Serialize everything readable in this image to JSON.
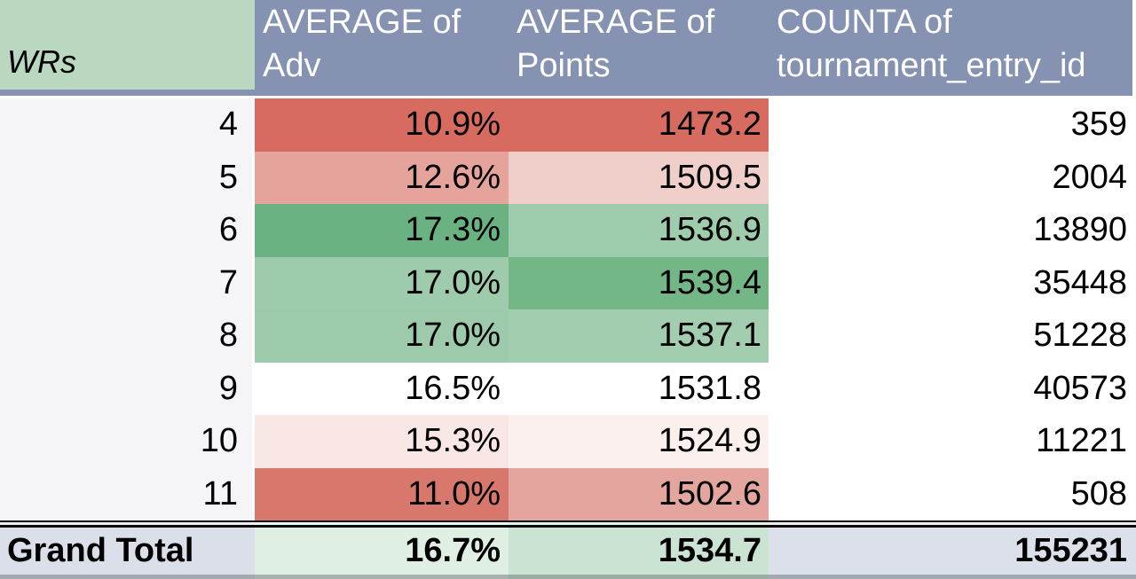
{
  "header": {
    "corner_label": "WRs",
    "columns": [
      {
        "label": "AVERAGE of Adv"
      },
      {
        "label": "AVERAGE of Points"
      },
      {
        "label": "COUNTA of tournament_entry_id"
      }
    ]
  },
  "rows": [
    {
      "wr": "4",
      "adv": "10.9%",
      "points": "1473.2",
      "count": "359",
      "adv_bg": "#D76B60",
      "points_bg": "#D76B60"
    },
    {
      "wr": "5",
      "adv": "12.6%",
      "points": "1509.5",
      "count": "2004",
      "adv_bg": "#E5A39C",
      "points_bg": "#F0CFCA"
    },
    {
      "wr": "6",
      "adv": "17.3%",
      "points": "1536.9",
      "count": "13890",
      "adv_bg": "#6AB282",
      "points_bg": "#9ECCAC"
    },
    {
      "wr": "7",
      "adv": "17.0%",
      "points": "1539.4",
      "count": "35448",
      "adv_bg": "#9DCBAB",
      "points_bg": "#73B787"
    },
    {
      "wr": "8",
      "adv": "17.0%",
      "points": "1537.1",
      "count": "51228",
      "adv_bg": "#9CCAAA",
      "points_bg": "#A2CEAF"
    },
    {
      "wr": "9",
      "adv": "16.5%",
      "points": "1531.8",
      "count": "40573",
      "adv_bg": "#FFFFFF",
      "points_bg": "#FFFFFF"
    },
    {
      "wr": "10",
      "adv": "15.3%",
      "points": "1524.9",
      "count": "11221",
      "adv_bg": "#F8E7E5",
      "points_bg": "#FBF0EE"
    },
    {
      "wr": "11",
      "adv": "11.0%",
      "points": "1502.6",
      "count": "508",
      "adv_bg": "#D8786D",
      "points_bg": "#E3A59E"
    }
  ],
  "grand_total": {
    "label": "Grand Total",
    "adv": "16.7%",
    "points": "1534.7",
    "count": "155231"
  },
  "colors": {
    "header_bg": "#8592B2",
    "header_text": "#FFFFFF",
    "corner_bg": "#B9D8BF",
    "corner_text": "#000000",
    "row_label_bg": "#F5F5F7",
    "count_bg": "#FFFFFF",
    "body_text": "#000000",
    "rule": "#0A0A0A",
    "total_label_bg": "#DBDFE9",
    "total_adv_bg": "#E0EFE4",
    "total_points_bg": "#CBE3D2",
    "total_count_bg": "#DBE0EA",
    "bottom_shade": "rgba(60,65,75,0.35)"
  }
}
